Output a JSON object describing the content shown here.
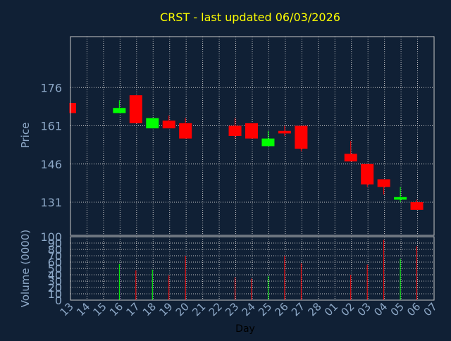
{
  "chart_data": {
    "type": "candlestick",
    "title": "CRST - last updated 06/03/2026",
    "xlabel": "Day",
    "colors": {
      "background": "#102035",
      "grid": "#c8c8c8",
      "text": "#8ea9c8",
      "title": "#ffff00",
      "up": "#00ff00",
      "down": "#ff0000"
    },
    "price_panel": {
      "ylabel": "Price",
      "ylim": [
        118,
        196
      ],
      "yticks": [
        131,
        146,
        161,
        176
      ],
      "grid": true
    },
    "volume_panel": {
      "ylabel": "Volume (0000)",
      "ylim": [
        0,
        100
      ],
      "yticks": [
        0,
        10,
        20,
        30,
        40,
        50,
        60,
        70,
        80,
        90,
        100
      ],
      "ytick_labels": [
        "0",
        "10",
        "20",
        "30",
        "40",
        "50",
        "60",
        "70",
        "80",
        "90",
        "100"
      ],
      "grid": true
    },
    "x_tick_labels": [
      "13",
      "14",
      "15",
      "16",
      "17",
      "18",
      "19",
      "20",
      "21",
      "22",
      "23",
      "24",
      "25",
      "26",
      "27",
      "28",
      "01",
      "02",
      "03",
      "04",
      "05",
      "06",
      "07"
    ],
    "candles": [
      {
        "day": "13",
        "open": 170,
        "high": 170,
        "low": 166,
        "close": 166,
        "volume": 0
      },
      {
        "day": "16",
        "open": 166,
        "high": 171,
        "low": 166,
        "close": 168,
        "volume": 57
      },
      {
        "day": "17",
        "open": 173,
        "high": 173,
        "low": 162,
        "close": 162,
        "volume": 47
      },
      {
        "day": "18",
        "open": 160,
        "high": 164,
        "low": 160,
        "close": 164,
        "volume": 48
      },
      {
        "day": "19",
        "open": 163,
        "high": 165,
        "low": 160,
        "close": 160,
        "volume": 39
      },
      {
        "day": "20",
        "open": 162,
        "high": 164,
        "low": 156,
        "close": 156,
        "volume": 70
      },
      {
        "day": "23",
        "open": 161,
        "high": 164,
        "low": 156,
        "close": 157,
        "volume": 36
      },
      {
        "day": "24",
        "open": 162,
        "high": 162,
        "low": 156,
        "close": 156,
        "volume": 34
      },
      {
        "day": "25",
        "open": 153,
        "high": 159,
        "low": 153,
        "close": 156,
        "volume": 38
      },
      {
        "day": "26",
        "open": 159,
        "high": 161,
        "low": 157,
        "close": 158,
        "volume": 70
      },
      {
        "day": "27",
        "open": 161,
        "high": 161,
        "low": 151,
        "close": 152,
        "volume": 58
      },
      {
        "day": "02",
        "open": 150,
        "high": 155,
        "low": 147,
        "close": 147,
        "volume": 40
      },
      {
        "day": "03",
        "open": 146,
        "high": 146,
        "low": 137,
        "close": 138,
        "volume": 56
      },
      {
        "day": "04",
        "open": 140,
        "high": 140,
        "low": 134,
        "close": 137,
        "volume": 95
      },
      {
        "day": "05",
        "open": 132,
        "high": 137,
        "low": 131,
        "close": 133,
        "volume": 65
      },
      {
        "day": "06",
        "open": 131,
        "high": 132,
        "low": 128,
        "close": 128,
        "volume": 85
      }
    ]
  }
}
